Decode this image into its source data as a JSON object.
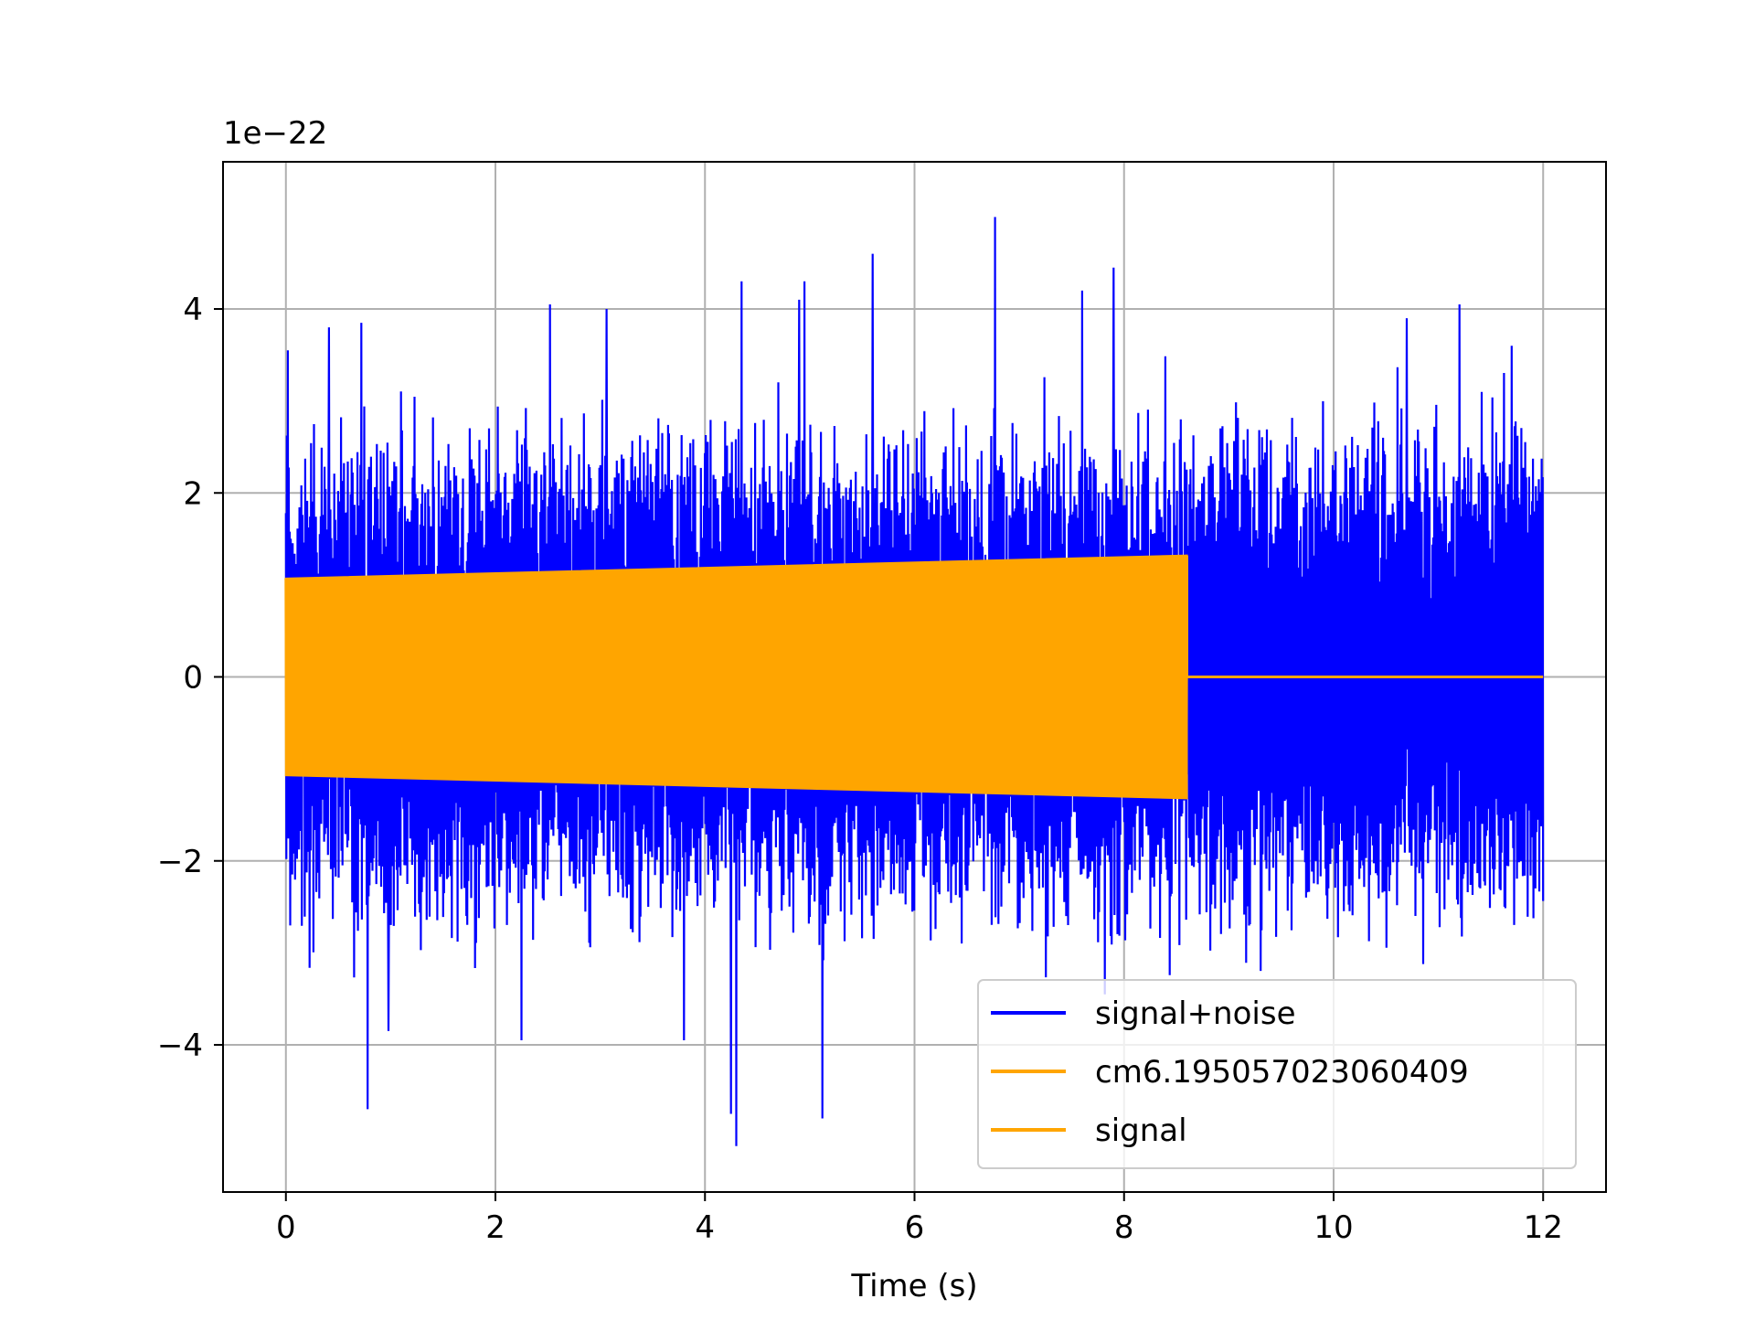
{
  "chart_data": {
    "type": "line",
    "title": "",
    "xlabel": "Time (s)",
    "ylabel": "",
    "y_offset_label": "1e−22",
    "y_scale_factor": 1e-22,
    "xlim": [
      -0.6,
      12.6
    ],
    "ylim": [
      -5.6,
      5.6
    ],
    "x_ticks": [
      0,
      2,
      4,
      6,
      8,
      10,
      12
    ],
    "x_tick_labels": [
      "0",
      "2",
      "4",
      "6",
      "8",
      "10",
      "12"
    ],
    "y_ticks": [
      -4,
      -2,
      0,
      2,
      4
    ],
    "y_tick_labels": [
      "−4",
      "−2",
      "0",
      "2",
      "4"
    ],
    "grid": true,
    "legend_position": "lower-right",
    "series": [
      {
        "name": "signal+noise",
        "color": "#0000ff",
        "x_range": [
          0,
          12
        ],
        "typical_envelope": [
          -2.3,
          2.3
        ],
        "peaks": [
          {
            "x": 0.02,
            "y": 3.55
          },
          {
            "x": 0.41,
            "y": 3.8
          },
          {
            "x": 0.72,
            "y": 3.85
          },
          {
            "x": 0.78,
            "y": -4.7
          },
          {
            "x": 0.98,
            "y": -3.85
          },
          {
            "x": 2.25,
            "y": -3.95
          },
          {
            "x": 2.52,
            "y": 4.05
          },
          {
            "x": 3.06,
            "y": 4.0
          },
          {
            "x": 3.8,
            "y": -3.95
          },
          {
            "x": 4.25,
            "y": -4.75
          },
          {
            "x": 4.3,
            "y": -5.1
          },
          {
            "x": 4.35,
            "y": 4.3
          },
          {
            "x": 4.9,
            "y": 4.1
          },
          {
            "x": 4.95,
            "y": 4.3
          },
          {
            "x": 5.12,
            "y": -4.8
          },
          {
            "x": 5.6,
            "y": 4.6
          },
          {
            "x": 6.77,
            "y": 5.0
          },
          {
            "x": 7.6,
            "y": 4.2
          },
          {
            "x": 7.9,
            "y": 4.45
          },
          {
            "x": 10.7,
            "y": 3.9
          },
          {
            "x": 11.2,
            "y": 4.05
          },
          {
            "x": 11.7,
            "y": 3.6
          }
        ]
      },
      {
        "name": "cm6.195057023060409",
        "color": "#ffa500",
        "x_range": [
          0,
          8.6
        ],
        "amplitude_start": 1.07,
        "amplitude_end": 1.32,
        "after_end_value": 0
      },
      {
        "name": "signal",
        "color": "#ffa500",
        "x_range": [
          0,
          12
        ],
        "amplitude_start": 1.07,
        "amplitude_end": 1.32,
        "chirp_end": 8.6,
        "after_end_value": 0
      }
    ]
  }
}
